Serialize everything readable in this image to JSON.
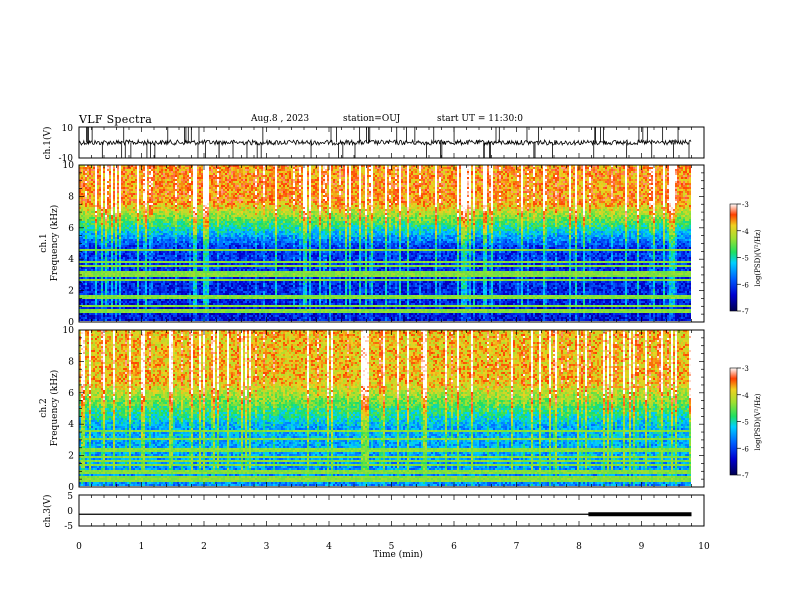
{
  "header": {
    "title": "VLF Spectra",
    "date": "Aug.8 , 2023",
    "station": "station=OUJ",
    "start": "start UT = 11:30:0"
  },
  "colors": {
    "colormap": [
      "#00005a",
      "#0000c8",
      "#0050ff",
      "#00c8ff",
      "#30e080",
      "#80e840",
      "#e0e020",
      "#ff9000",
      "#ff2000",
      "#ffffff"
    ],
    "trace": "#000000",
    "frame": "#000000"
  },
  "chart_data": [
    {
      "type": "line",
      "name": "ch1-waveform",
      "ylabel": "ch.1(V)",
      "ylim": [
        -10,
        10
      ],
      "y_ticks": [
        "10",
        "-10"
      ],
      "x": [
        0,
        1,
        2,
        3,
        4,
        5,
        6,
        7,
        8,
        9,
        9.8
      ],
      "y": [
        0,
        0.3,
        -0.2,
        0.1,
        0,
        0.2,
        -0.1,
        0.3,
        0,
        0.1,
        0
      ],
      "xlim": [
        0,
        10
      ]
    },
    {
      "type": "heatmap",
      "name": "ch1-spectrogram",
      "ylabel": "ch.1 Frequency (kHz)",
      "ylim": [
        0,
        10
      ],
      "y_ticks": [
        "0",
        "2",
        "4",
        "6",
        "8",
        "10"
      ],
      "xlim": [
        0,
        10
      ],
      "x_data_end": 9.8,
      "colorbar": {
        "label": "log(PSD)(V²/Hz)",
        "range": [
          -7,
          -3
        ],
        "ticks": [
          "-3",
          "-4",
          "-5",
          "-6",
          "-7"
        ]
      },
      "description_levels": {
        "low_freq_band_kHz": [
          0,
          4.5
        ],
        "low_freq_log_psd": -6.3,
        "high_freq_log_psd": -3.6
      }
    },
    {
      "type": "heatmap",
      "name": "ch2-spectrogram",
      "ylabel": "ch.2 Frequency (kHz)",
      "ylim": [
        0,
        10
      ],
      "y_ticks": [
        "0",
        "2",
        "4",
        "6",
        "8",
        "10"
      ],
      "xlim": [
        0,
        10
      ],
      "x_data_end": 9.8,
      "colorbar": {
        "label": "log(PSD)(V²/Hz)",
        "range": [
          -7,
          -3
        ],
        "ticks": [
          "-3",
          "-4",
          "-5",
          "-6",
          "-7"
        ]
      },
      "description_levels": {
        "low_freq_band_kHz": [
          0,
          3.5
        ],
        "low_freq_log_psd": -5.6,
        "high_freq_log_psd": -3.8
      }
    },
    {
      "type": "line",
      "name": "ch3-trace",
      "ylabel": "ch.3(V)",
      "ylim": [
        -5,
        5
      ],
      "y_ticks": [
        "5",
        "0",
        "-5"
      ],
      "x": [
        0,
        8.15,
        8.15,
        9.8
      ],
      "y": [
        -1.2,
        -1.2,
        -1.2,
        -1.2
      ],
      "thick_from": 8.15,
      "xlim": [
        0,
        10
      ],
      "xlabel": "Time (min)",
      "x_ticks": [
        "0",
        "1",
        "2",
        "3",
        "4",
        "5",
        "6",
        "7",
        "8",
        "9",
        "10"
      ]
    }
  ]
}
